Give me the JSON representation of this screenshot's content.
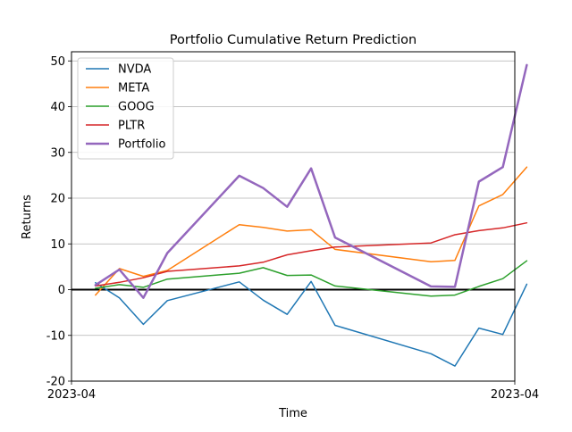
{
  "chart_data": {
    "type": "line",
    "title": "Portfolio Cumulative Return Prediction",
    "xlabel": "Time",
    "ylabel": "Returns",
    "ylim": [
      -20,
      52
    ],
    "yticks": [
      -20,
      -10,
      0,
      10,
      20,
      30,
      40,
      50
    ],
    "xtick_labels": [
      "2023-04",
      "2023-04"
    ],
    "grid": "horizontal",
    "legend": "top-left",
    "zero_line": true,
    "x": [
      1,
      2,
      3,
      4,
      7,
      8,
      9,
      10,
      11,
      15,
      16,
      17,
      18,
      19
    ],
    "series": [
      {
        "name": "NVDA",
        "color": "#1f77b4",
        "width": 1.5,
        "values": [
          1.5,
          -1.8,
          -7.6,
          -2.4,
          1.7,
          -2.3,
          -5.4,
          1.8,
          -7.8,
          -14.0,
          -16.7,
          -8.4,
          -9.8,
          1.2
        ]
      },
      {
        "name": "META",
        "color": "#ff7f0e",
        "width": 1.5,
        "values": [
          -1.2,
          4.6,
          2.9,
          4.2,
          14.2,
          13.6,
          12.8,
          13.1,
          8.8,
          6.1,
          6.4,
          18.3,
          20.8,
          26.8
        ]
      },
      {
        "name": "GOOG",
        "color": "#2ca02c",
        "width": 1.5,
        "values": [
          0.3,
          1.1,
          0.5,
          2.3,
          3.6,
          4.8,
          3.1,
          3.2,
          0.8,
          -1.4,
          -1.2,
          0.7,
          2.4,
          6.3
        ]
      },
      {
        "name": "PLTR",
        "color": "#d62728",
        "width": 1.5,
        "values": [
          0.8,
          1.6,
          2.6,
          4.0,
          5.2,
          6.0,
          7.6,
          8.5,
          9.3,
          10.2,
          12.0,
          12.9,
          13.5,
          14.6
        ]
      },
      {
        "name": "Portfolio",
        "color": "#9467bd",
        "width": 2.5,
        "values": [
          1.0,
          4.4,
          -1.8,
          8.0,
          24.9,
          22.2,
          18.1,
          26.5,
          11.4,
          0.7,
          0.6,
          23.6,
          26.8,
          49.1
        ]
      }
    ]
  }
}
